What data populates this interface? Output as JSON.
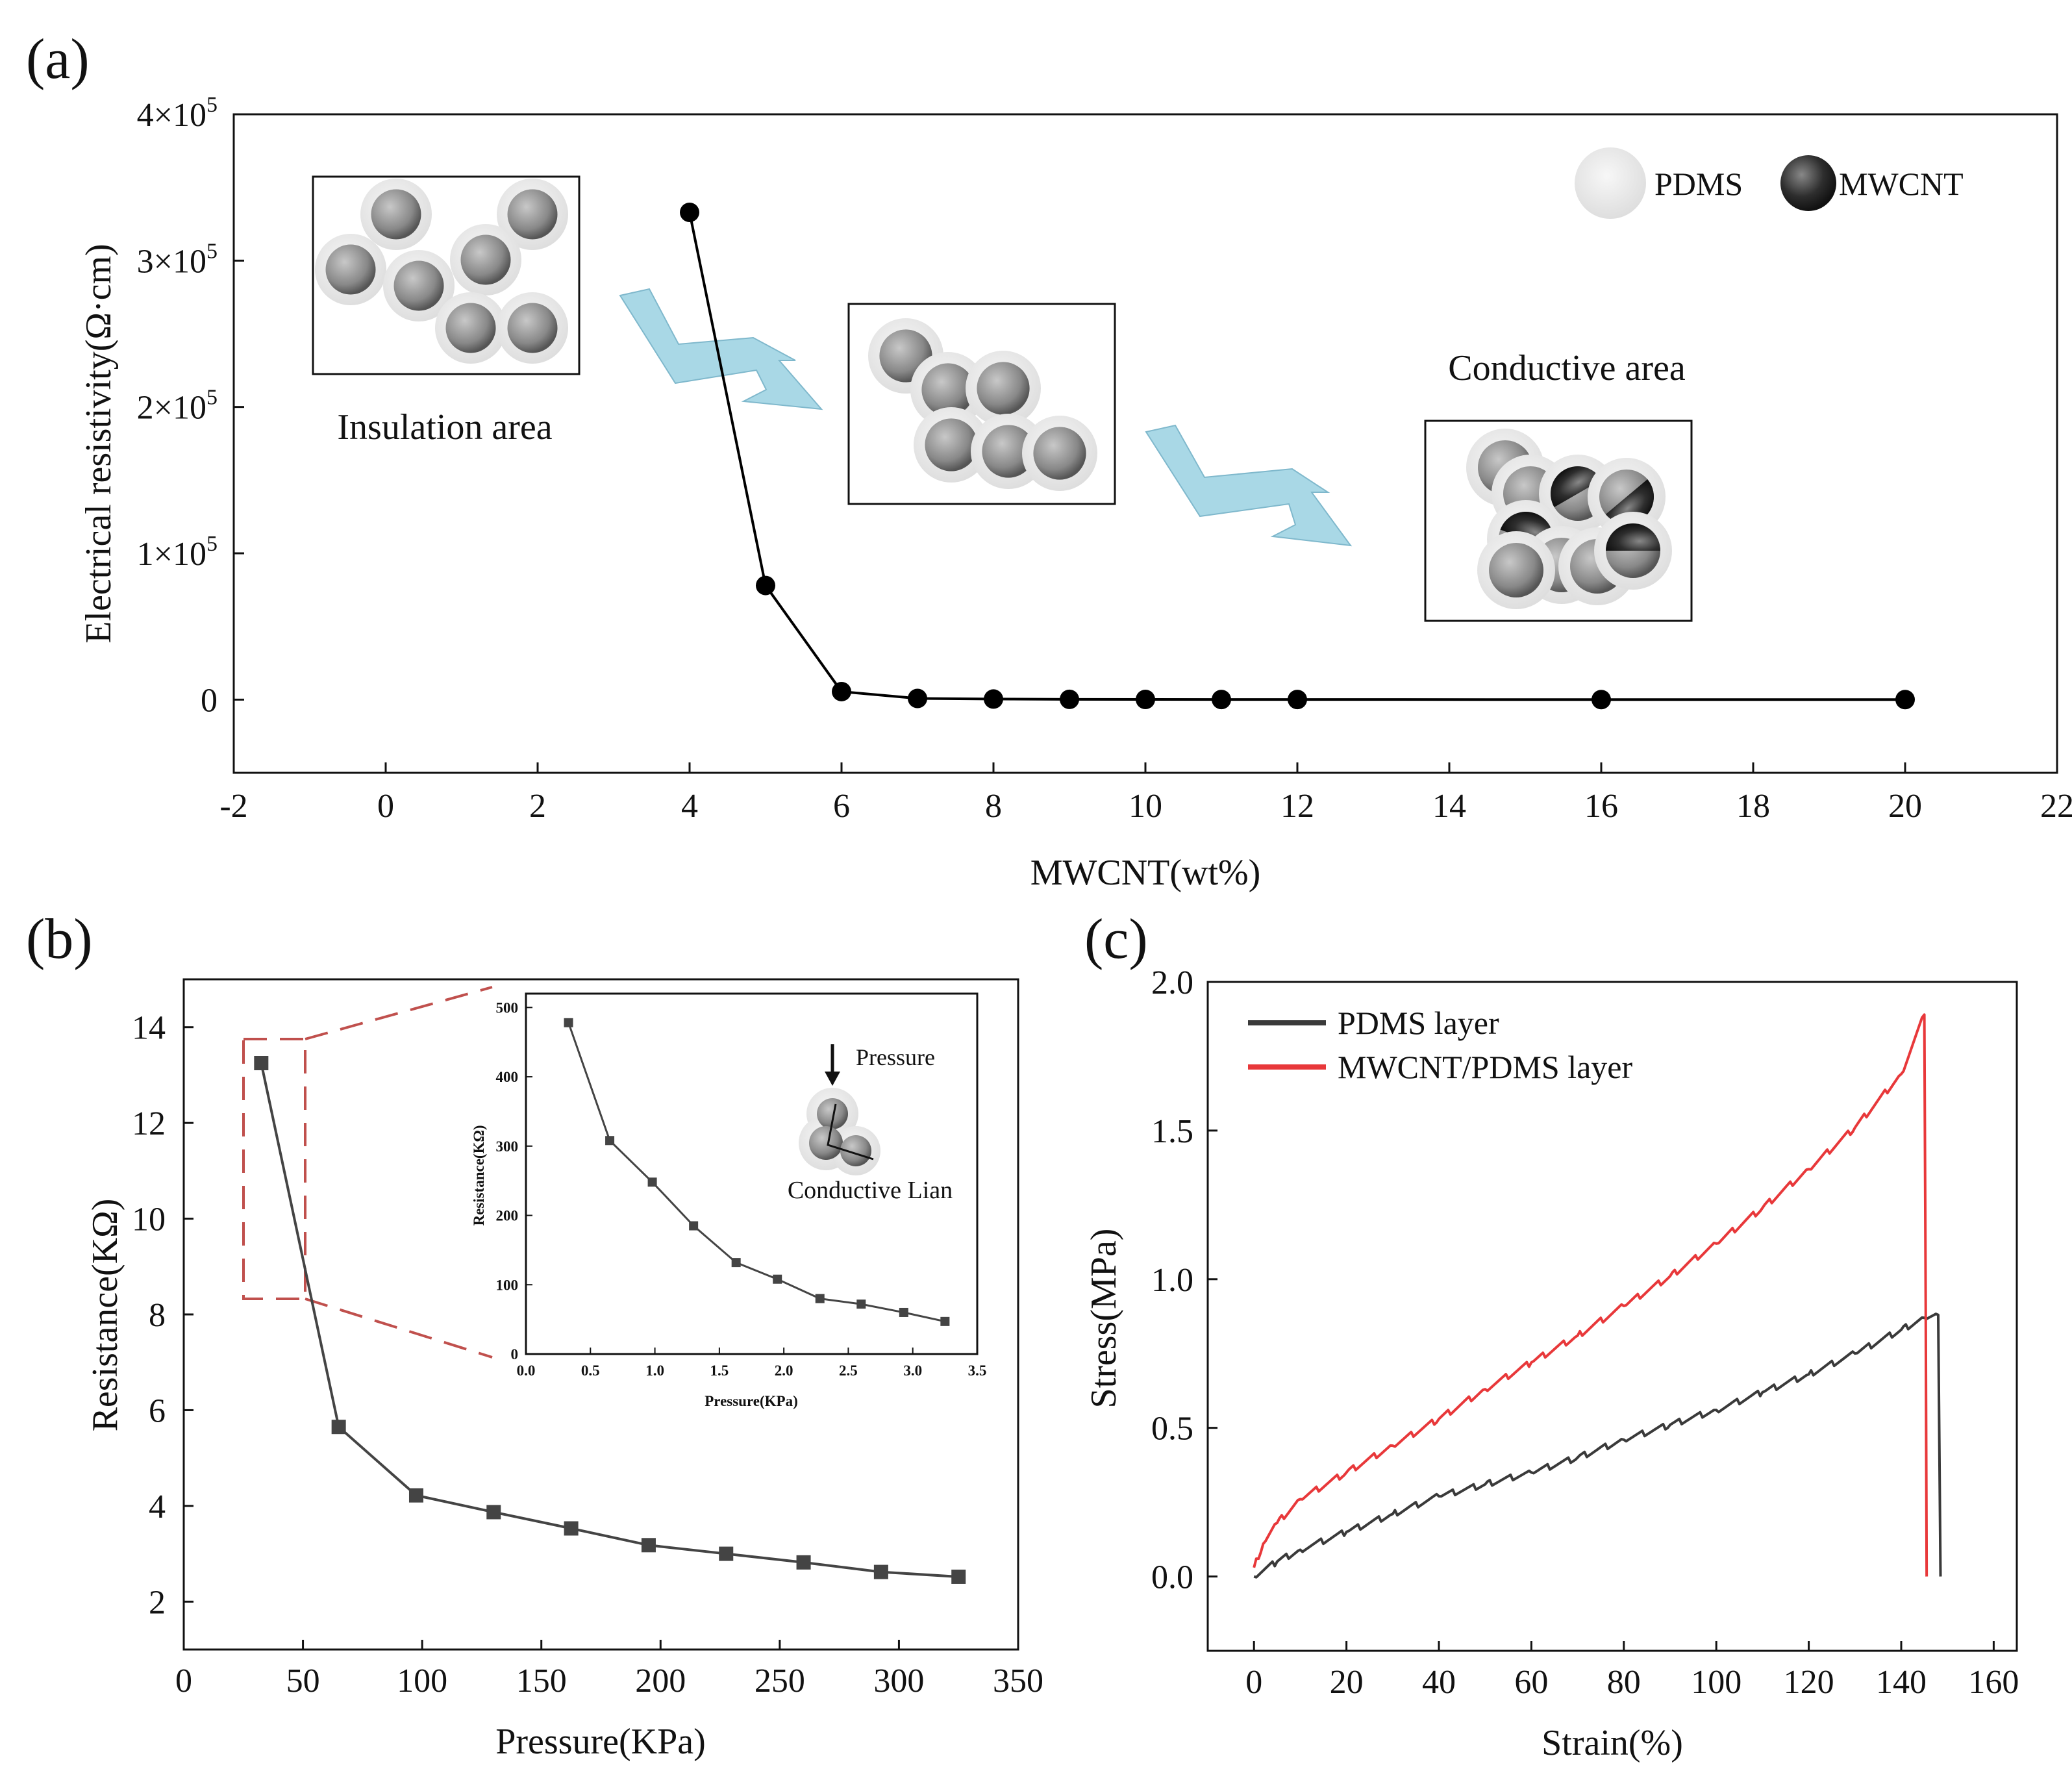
{
  "colors": {
    "panel_a_series": "#000000",
    "panel_b_series": "#444444",
    "pdms_layer": "#3a3a3a",
    "mwcnt_layer": "#e8383a",
    "zoom_box": "#c0504d",
    "arrow_fill": "#a9d8e6"
  },
  "chart_data": [
    {
      "panel": "(a)",
      "type": "line",
      "xlabel": "MWCNT(wt%)",
      "ylabel": "Electrical resistivity(Ω·cm)",
      "xlim": [
        -2,
        22
      ],
      "ylim": [
        -50000,
        400000
      ],
      "xticks": [
        "-2",
        "0",
        "2",
        "4",
        "6",
        "8",
        "10",
        "12",
        "14",
        "16",
        "18",
        "20",
        "22"
      ],
      "yticks": [
        {
          "value": 0,
          "base": "0",
          "exp": ""
        },
        {
          "value": 100000,
          "base": "1×10",
          "exp": "5"
        },
        {
          "value": 200000,
          "base": "2×10",
          "exp": "5"
        },
        {
          "value": 300000,
          "base": "3×10",
          "exp": "5"
        },
        {
          "value": 400000,
          "base": "4×10",
          "exp": "5"
        }
      ],
      "x": [
        4,
        5,
        6,
        7,
        8,
        9,
        10,
        11,
        12,
        16,
        20
      ],
      "y": [
        333000,
        78000,
        5500,
        800,
        400,
        200,
        150,
        100,
        80,
        50,
        30
      ],
      "legend": [
        "PDMS",
        "MWCNT"
      ],
      "annotations": [
        "Insulation area",
        "Conductive area"
      ]
    },
    {
      "panel": "(b)",
      "type": "line",
      "xlabel": "Pressure(KPa)",
      "ylabel": "Resistance(KΩ)",
      "xlim": [
        0,
        350
      ],
      "ylim": [
        1,
        15
      ],
      "xticks": [
        "0",
        "50",
        "100",
        "150",
        "200",
        "250",
        "300",
        "350"
      ],
      "yticks": [
        "2",
        "4",
        "6",
        "8",
        "10",
        "12",
        "14"
      ],
      "x": [
        32.5,
        65,
        97.5,
        130,
        162.5,
        195,
        227.5,
        260,
        292.5,
        325
      ],
      "y": [
        13.25,
        5.65,
        4.22,
        3.87,
        3.53,
        3.18,
        3.0,
        2.82,
        2.62,
        2.52
      ]
    },
    {
      "panel": "(b) inset",
      "type": "line",
      "xlabel": "Pressure(KPa)",
      "ylabel": "Resistance(KΩ)",
      "xlim": [
        0,
        3.5
      ],
      "ylim": [
        0,
        520
      ],
      "xticks": [
        "0.0",
        "0.5",
        "1.0",
        "1.5",
        "2.0",
        "2.5",
        "3.0",
        "3.5"
      ],
      "yticks": [
        "0",
        "100",
        "200",
        "300",
        "400",
        "500"
      ],
      "x": [
        0.33,
        0.65,
        0.98,
        1.3,
        1.63,
        1.95,
        2.28,
        2.6,
        2.93,
        3.25
      ],
      "y": [
        478,
        308,
        248,
        185,
        132,
        108,
        80,
        72,
        60,
        47
      ],
      "annotations": [
        "Pressure",
        "Conductive Lian"
      ]
    },
    {
      "panel": "(c)",
      "type": "line",
      "xlabel": "Strain(%)",
      "ylabel": "Stress(MPa)",
      "xlim": [
        -10,
        165
      ],
      "ylim": [
        -0.25,
        2.0
      ],
      "xticks": [
        "0",
        "20",
        "40",
        "60",
        "80",
        "100",
        "120",
        "140",
        "160"
      ],
      "yticks": [
        "0.0",
        "0.5",
        "1.0",
        "1.5",
        "2.0"
      ],
      "series": [
        {
          "name": "PDMS layer",
          "x": [
            0,
            5,
            10,
            20,
            30,
            40,
            50,
            60,
            70,
            80,
            90,
            100,
            110,
            120,
            130,
            140,
            145,
            148,
            148.5
          ],
          "y": [
            0,
            0.05,
            0.09,
            0.15,
            0.21,
            0.27,
            0.31,
            0.35,
            0.4,
            0.46,
            0.51,
            0.56,
            0.62,
            0.68,
            0.75,
            0.83,
            0.87,
            0.88,
            0.0
          ]
        },
        {
          "name": "MWCNT/PDMS layer",
          "x": [
            0,
            2,
            5,
            10,
            20,
            30,
            40,
            50,
            60,
            70,
            80,
            90,
            100,
            110,
            120,
            130,
            140,
            145,
            145.3,
            145.5
          ],
          "y": [
            0.03,
            0.11,
            0.18,
            0.26,
            0.35,
            0.44,
            0.53,
            0.63,
            0.72,
            0.81,
            0.91,
            1.01,
            1.12,
            1.24,
            1.37,
            1.51,
            1.69,
            1.89,
            0.9,
            0.0
          ]
        }
      ]
    }
  ]
}
